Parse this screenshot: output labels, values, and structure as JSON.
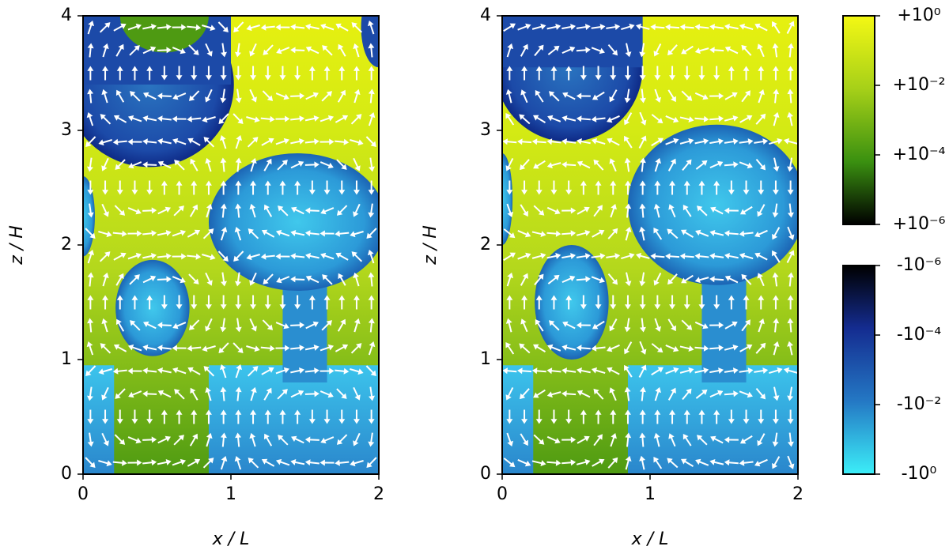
{
  "chart_data": [
    {
      "type": "heatmap",
      "x_label": "x / L",
      "y_label": "z / H",
      "xlim": [
        0,
        2
      ],
      "ylim": [
        0,
        4
      ],
      "xticks": [
        0,
        1,
        2
      ],
      "yticks": [
        0,
        1,
        2,
        3,
        4
      ]
    },
    {
      "type": "heatmap",
      "x_label": "x / L",
      "y_label": "z / H",
      "xlim": [
        0,
        2
      ],
      "ylim": [
        0,
        4
      ],
      "xticks": [
        0,
        1,
        2
      ],
      "yticks": [
        0,
        1,
        2,
        3,
        4
      ]
    },
    {
      "type": "colorbar",
      "scale": "log",
      "lim": [
        1e-06,
        1
      ],
      "ticks": [
        {
          "value": 1,
          "label": "+10⁰"
        },
        {
          "value": 0.01,
          "label": "+10⁻²"
        },
        {
          "value": 0.0001,
          "label": "+10⁻⁴"
        },
        {
          "value": 1e-06,
          "label": "+10⁻⁶"
        }
      ]
    },
    {
      "type": "colorbar",
      "scale": "log",
      "lim": [
        -1,
        -1e-06
      ],
      "ticks": [
        {
          "value": -1e-06,
          "label": "-10⁻⁶"
        },
        {
          "value": -0.0001,
          "label": "-10⁻⁴"
        },
        {
          "value": -0.01,
          "label": "-10⁻²"
        },
        {
          "value": -1,
          "label": "-10⁰"
        }
      ]
    }
  ]
}
